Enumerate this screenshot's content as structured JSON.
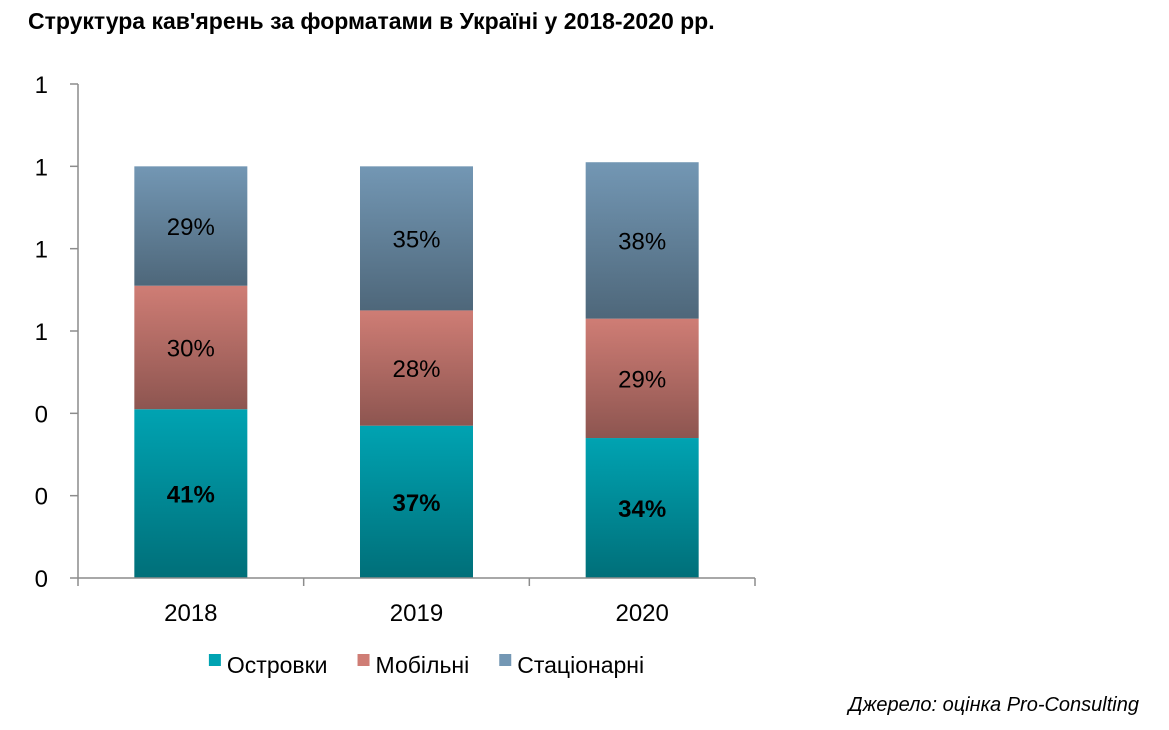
{
  "chart_data": {
    "type": "stacked-bar",
    "title": "Структура кав'ярень за форматами в Україні у 2018-2020 рр.",
    "categories": [
      "2018",
      "2019",
      "2020"
    ],
    "series": [
      {
        "name": "Островки",
        "color": "#00a3b2",
        "values": [
          0.41,
          0.37,
          0.34
        ],
        "labels": [
          "41%",
          "37%",
          "34%"
        ],
        "bold": true
      },
      {
        "name": "Мобільні",
        "color": "#cf7d75",
        "values": [
          0.3,
          0.28,
          0.29
        ],
        "labels": [
          "30%",
          "28%",
          "29%"
        ],
        "bold": false
      },
      {
        "name": "Стаціонарні",
        "color": "#7397b4",
        "values": [
          0.29,
          0.35,
          0.38
        ],
        "labels": [
          "29%",
          "35%",
          "38%"
        ],
        "bold": false
      }
    ],
    "y_ticks": [
      0,
      0.2,
      0.4,
      0.6,
      0.8,
      1.0,
      1.2
    ],
    "y_tick_labels": [
      "0",
      "0",
      "0",
      "1",
      "1",
      "1",
      "1"
    ],
    "ylim": [
      0,
      1.2
    ],
    "legend_position": "bottom",
    "grid": false,
    "source": "Джерело: оцінка Pro-Consulting"
  }
}
